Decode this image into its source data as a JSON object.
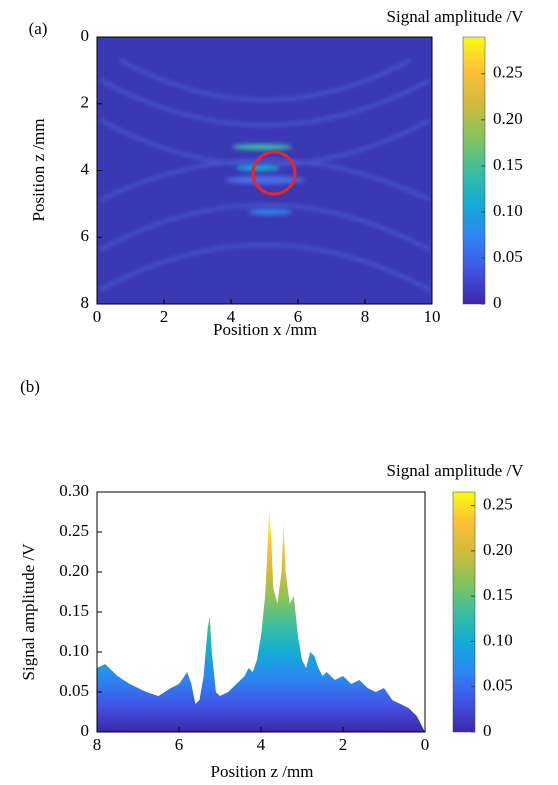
{
  "chart_data": [
    {
      "type": "heatmap",
      "panel_label": "(a)",
      "xlabel": "Position x /mm",
      "ylabel": "Position z /mm",
      "xlim": [
        0,
        10
      ],
      "xticks": [
        0,
        2,
        4,
        6,
        8,
        10
      ],
      "ylim": [
        8,
        0
      ],
      "yticks": [
        0,
        2,
        4,
        6,
        8
      ],
      "colormap": [
        "#3e26a8",
        "#4253e6",
        "#2d86f3",
        "#13abd6",
        "#3bbfa0",
        "#84c45b",
        "#d1bb3a",
        "#fcc038",
        "#f9fb14"
      ],
      "colorbar": {
        "title": "Signal amplitude /V",
        "clim": [
          0,
          0.29
        ],
        "ticks": [
          0,
          0.05,
          {
            "value": 0.1,
            "label": "0.10"
          },
          0.15,
          {
            "value": 0.2,
            "label": "0.20"
          },
          0.25
        ]
      }
    },
    {
      "type": "area",
      "panel_label": "(b)",
      "xlabel": "Position z /mm",
      "ylabel": "Signal amplitude /V",
      "xlim": [
        8,
        0
      ],
      "xticks": [
        8,
        6,
        4,
        2,
        0
      ],
      "ylim": [
        0,
        0.3
      ],
      "yticks": [
        0,
        0.05,
        {
          "value": 0.1,
          "label": "0.10"
        },
        0.15,
        {
          "value": 0.2,
          "label": "0.20"
        },
        0.25,
        {
          "value": 0.3,
          "label": "0.30"
        }
      ],
      "x": [
        8,
        7.8,
        7.5,
        7.2,
        7,
        6.8,
        6.5,
        6.2,
        6,
        5.8,
        5.7,
        5.6,
        5.5,
        5.4,
        5.3,
        5.25,
        5.2,
        5.1,
        5,
        4.8,
        4.6,
        4.4,
        4.3,
        4.2,
        4.1,
        4,
        3.9,
        3.85,
        3.8,
        3.75,
        3.7,
        3.6,
        3.5,
        3.45,
        3.4,
        3.3,
        3.2,
        3.1,
        3,
        2.9,
        2.8,
        2.7,
        2.6,
        2.5,
        2.4,
        2.2,
        2,
        1.8,
        1.6,
        1.4,
        1.2,
        1,
        0.8,
        0.6,
        0.4,
        0.2,
        0
      ],
      "values": [
        0.08,
        0.085,
        0.07,
        0.06,
        0.055,
        0.05,
        0.045,
        0.055,
        0.06,
        0.075,
        0.06,
        0.035,
        0.04,
        0.07,
        0.13,
        0.145,
        0.1,
        0.05,
        0.045,
        0.05,
        0.06,
        0.07,
        0.08,
        0.075,
        0.09,
        0.12,
        0.17,
        0.22,
        0.28,
        0.24,
        0.18,
        0.16,
        0.2,
        0.26,
        0.2,
        0.16,
        0.17,
        0.12,
        0.09,
        0.08,
        0.1,
        0.095,
        0.08,
        0.07,
        0.075,
        0.065,
        0.07,
        0.06,
        0.065,
        0.055,
        0.05,
        0.055,
        0.04,
        0.035,
        0.03,
        0.02,
        0
      ],
      "colormap": [
        "#3e26a8",
        "#4253e6",
        "#2d86f3",
        "#13abd6",
        "#3bbfa0",
        "#84c45b",
        "#d1bb3a",
        "#fcc038",
        "#f9fb14"
      ],
      "colorbar": {
        "title": "Signal amplitude /V",
        "clim": [
          0,
          0.265
        ],
        "ticks": [
          0,
          0.05,
          {
            "value": 0.1,
            "label": "0.10"
          },
          0.15,
          {
            "value": 0.2,
            "label": "0.20"
          },
          0.25
        ]
      }
    }
  ]
}
